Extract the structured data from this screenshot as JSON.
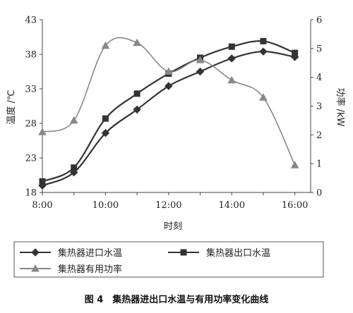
{
  "chart_data": {
    "type": "line",
    "title": "图 4　集热器进出口水温与有用功率变化曲线",
    "xlabel": "时刻",
    "ylabel_left": "温度 /℃",
    "ylabel_right": "功率 /kW",
    "x_ticks": [
      "8:00",
      "10:00",
      "12:00",
      "14:00",
      "16:00"
    ],
    "y_left_ticks": [
      "18",
      "23",
      "28",
      "33",
      "38",
      "43"
    ],
    "y_right_ticks": [
      "0",
      "1",
      "2",
      "3",
      "4",
      "5",
      "6"
    ],
    "xlim": [
      8,
      16.5
    ],
    "ylim_left": [
      18,
      43
    ],
    "ylim_right": [
      0,
      6
    ],
    "grid": false,
    "legend_position": "bottom",
    "series": [
      {
        "name": "集热器进口水温",
        "axis": "left",
        "marker": "diamond",
        "x": [
          8,
          9,
          10,
          11,
          12,
          13,
          14,
          15,
          16
        ],
        "y": [
          19.0,
          20.9,
          26.6,
          30.0,
          33.4,
          35.5,
          37.4,
          38.4,
          37.6
        ]
      },
      {
        "name": "集热器出口水温",
        "axis": "left",
        "marker": "square",
        "x": [
          8,
          9,
          10,
          11,
          12,
          13,
          14,
          15,
          16
        ],
        "y": [
          19.6,
          21.6,
          28.7,
          32.3,
          35.2,
          37.5,
          39.1,
          39.9,
          38.2
        ]
      },
      {
        "name": "集热器有用功率",
        "axis": "right",
        "marker": "triangle",
        "x": [
          8,
          9,
          10,
          11,
          12,
          13,
          14,
          15,
          16
        ],
        "y": [
          2.1,
          2.5,
          5.1,
          5.2,
          4.2,
          4.6,
          3.9,
          3.3,
          0.95
        ]
      }
    ],
    "colors": {
      "line": "#333333",
      "power_line": "#888888",
      "axis": "#444444"
    }
  }
}
